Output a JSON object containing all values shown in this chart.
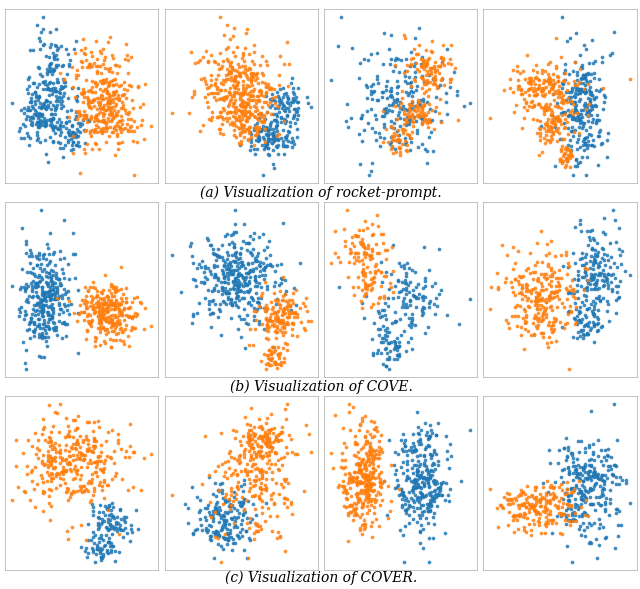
{
  "blue_color": "#1f77b4",
  "orange_color": "#ff7f0e",
  "background": "#ffffff",
  "caption_a": "(a) Visualization of rocket-prompt.",
  "caption_b": "(b) Visualization of COVE.",
  "caption_c": "(c) Visualization of COVER.",
  "caption_fontsize": 10,
  "dot_size": 7,
  "dot_alpha": 0.85,
  "panels": {
    "row0": [
      {
        "blue": [
          {
            "mu": [
              -2.5,
              1.5
            ],
            "sx": 0.6,
            "sy": 1.8,
            "n": 180
          },
          {
            "mu": [
              -3.5,
              -0.5
            ],
            "sx": 0.5,
            "sy": 0.8,
            "n": 80
          },
          {
            "mu": [
              -1.5,
              -1.5
            ],
            "sx": 0.5,
            "sy": 0.6,
            "n": 60
          }
        ],
        "orange": [
          {
            "mu": [
              0.5,
              1.0
            ],
            "sx": 1.0,
            "sy": 1.8,
            "n": 280
          },
          {
            "mu": [
              1.5,
              -1.0
            ],
            "sx": 0.7,
            "sy": 0.7,
            "n": 60
          }
        ]
      },
      {
        "blue": [
          {
            "mu": [
              1.5,
              -1.5
            ],
            "sx": 0.7,
            "sy": 0.7,
            "n": 120
          },
          {
            "mu": [
              2.5,
              0.5
            ],
            "sx": 0.6,
            "sy": 0.6,
            "n": 80
          }
        ],
        "orange": [
          {
            "mu": [
              -0.5,
              1.5
            ],
            "sx": 1.2,
            "sy": 1.4,
            "n": 300
          },
          {
            "mu": [
              0.0,
              -0.5
            ],
            "sx": 0.8,
            "sy": 0.8,
            "n": 100
          }
        ]
      },
      {
        "blue": [
          {
            "mu": [
              -0.5,
              0.5
            ],
            "sx": 1.8,
            "sy": 1.5,
            "n": 220
          }
        ],
        "orange": [
          {
            "mu": [
              2.0,
              2.5
            ],
            "sx": 1.0,
            "sy": 0.7,
            "n": 100
          },
          {
            "mu": [
              1.0,
              0.0
            ],
            "sx": 0.8,
            "sy": 0.6,
            "n": 80
          },
          {
            "mu": [
              -0.5,
              -1.5
            ],
            "sx": 0.5,
            "sy": 0.4,
            "n": 40
          }
        ]
      },
      {
        "blue": [
          {
            "mu": [
              1.5,
              0.5
            ],
            "sx": 0.8,
            "sy": 1.5,
            "n": 250
          }
        ],
        "orange": [
          {
            "mu": [
              -1.0,
              1.5
            ],
            "sx": 1.2,
            "sy": 0.8,
            "n": 180
          },
          {
            "mu": [
              -0.5,
              -0.5
            ],
            "sx": 0.7,
            "sy": 0.6,
            "n": 80
          },
          {
            "mu": [
              0.5,
              -2.0
            ],
            "sx": 0.3,
            "sy": 0.3,
            "n": 30
          }
        ]
      }
    ],
    "row1": [
      {
        "blue": [
          {
            "mu": [
              -2.0,
              1.0
            ],
            "sx": 0.7,
            "sy": 2.5,
            "n": 320
          }
        ],
        "orange": [
          {
            "mu": [
              1.5,
              -0.5
            ],
            "sx": 0.8,
            "sy": 1.5,
            "n": 280
          }
        ]
      },
      {
        "blue": [
          {
            "mu": [
              -0.5,
              1.5
            ],
            "sx": 1.2,
            "sy": 1.5,
            "n": 350
          }
        ],
        "orange": [
          {
            "mu": [
              2.0,
              -1.0
            ],
            "sx": 0.7,
            "sy": 0.8,
            "n": 150
          },
          {
            "mu": [
              1.5,
              -3.5
            ],
            "sx": 0.35,
            "sy": 0.35,
            "n": 40
          }
        ]
      },
      {
        "blue": [
          {
            "mu": [
              1.5,
              0.0
            ],
            "sx": 1.0,
            "sy": 0.8,
            "n": 120
          },
          {
            "mu": [
              0.5,
              -2.0
            ],
            "sx": 0.5,
            "sy": 0.5,
            "n": 60
          }
        ],
        "orange": [
          {
            "mu": [
              -1.0,
              2.0
            ],
            "sx": 0.7,
            "sy": 0.7,
            "n": 80
          },
          {
            "mu": [
              -0.5,
              0.5
            ],
            "sx": 0.5,
            "sy": 0.4,
            "n": 50
          }
        ]
      },
      {
        "blue": [
          {
            "mu": [
              2.5,
              1.5
            ],
            "sx": 0.7,
            "sy": 1.2,
            "n": 180
          },
          {
            "mu": [
              2.0,
              -1.5
            ],
            "sx": 0.4,
            "sy": 0.5,
            "n": 60
          }
        ],
        "orange": [
          {
            "mu": [
              -0.5,
              0.0
            ],
            "sx": 1.0,
            "sy": 1.2,
            "n": 250
          }
        ]
      }
    ],
    "row2": [
      {
        "blue": [
          {
            "mu": [
              1.5,
              -2.5
            ],
            "sx": 0.5,
            "sy": 0.5,
            "n": 80
          },
          {
            "mu": [
              1.0,
              -4.0
            ],
            "sx": 0.4,
            "sy": 0.35,
            "n": 50
          }
        ],
        "orange": [
          {
            "mu": [
              -0.5,
              0.5
            ],
            "sx": 1.2,
            "sy": 1.2,
            "n": 320
          }
        ]
      },
      {
        "blue": [
          {
            "mu": [
              -0.5,
              -2.5
            ],
            "sx": 0.7,
            "sy": 0.8,
            "n": 180
          }
        ],
        "orange": [
          {
            "mu": [
              1.2,
              1.5
            ],
            "sx": 0.6,
            "sy": 0.6,
            "n": 120
          },
          {
            "mu": [
              0.8,
              -0.5
            ],
            "sx": 0.9,
            "sy": 1.5,
            "n": 200
          }
        ]
      },
      {
        "blue": [
          {
            "mu": [
              2.5,
              0.0
            ],
            "sx": 0.7,
            "sy": 2.5,
            "n": 300
          }
        ],
        "orange": [
          {
            "mu": [
              -0.5,
              0.0
            ],
            "sx": 0.6,
            "sy": 2.5,
            "n": 320
          }
        ]
      },
      {
        "blue": [
          {
            "mu": [
              2.0,
              1.0
            ],
            "sx": 0.8,
            "sy": 2.0,
            "n": 280
          }
        ],
        "orange": [
          {
            "mu": [
              -0.5,
              -0.5
            ],
            "sx": 0.9,
            "sy": 1.0,
            "n": 200
          }
        ]
      }
    ]
  }
}
